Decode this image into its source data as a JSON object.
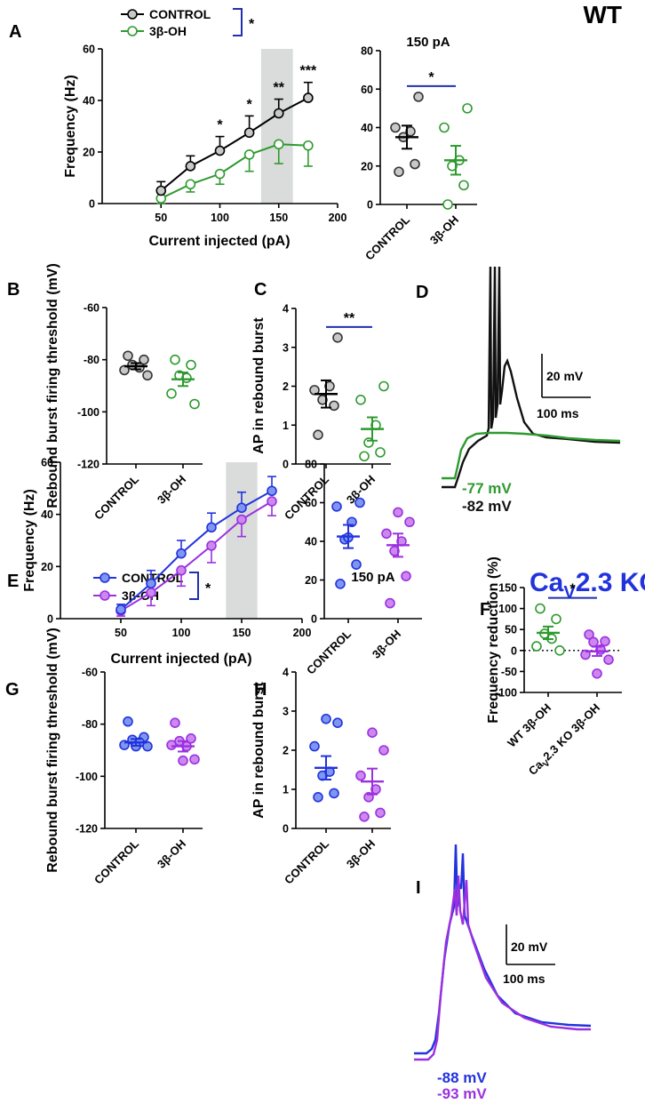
{
  "colors": {
    "wt_control": "#000000",
    "wt_control_fill": "#c8c8c8",
    "wt_treat": "#2e9a2e",
    "ko_control": "#2233dd",
    "ko_control_fill": "#7f96f0",
    "ko_treat": "#9b30e0",
    "ko_treat_fill": "#cc88ee",
    "shade": "#d9dcda",
    "bracket": "#1f2fb0"
  },
  "headers": {
    "wt": "WT",
    "ko_pre": "Ca",
    "ko_sub": "V",
    "ko_post": "2.3 KO"
  },
  "legend_wt": {
    "control": "CONTROL",
    "treat": "3β-OH",
    "sig": "*"
  },
  "legend_ko": {
    "control": "CONTROL",
    "treat": "3β-OH",
    "sig": "*"
  },
  "trace_D": {
    "label": "D",
    "scale_v": "20 mV",
    "scale_t": "100 ms",
    "v_treat": "-77 mV",
    "v_control": "-82 mV"
  },
  "trace_I": {
    "label": "I",
    "scale_v": "20 mV",
    "scale_t": "100 ms",
    "v_control": "-88 mV",
    "v_treat": "-93 mV"
  },
  "chart_data": [
    {
      "id": "A",
      "type": "line",
      "label": "A",
      "xlabel": "Current injected (pA)",
      "ylabel": "Frequency (Hz)",
      "xlim": [
        0,
        200
      ],
      "ylim": [
        0,
        60
      ],
      "xticks": [
        50,
        100,
        150,
        200
      ],
      "yticks": [
        0,
        20,
        40,
        60
      ],
      "highlight": [
        135,
        162
      ],
      "x": [
        50,
        75,
        100,
        125,
        150,
        175
      ],
      "series": [
        {
          "name": "CONTROL",
          "values": [
            5,
            14.5,
            20.5,
            27.5,
            35,
            41
          ],
          "errors": [
            3.5,
            4,
            5.5,
            6.5,
            5.5,
            6
          ]
        },
        {
          "name": "3β-OH",
          "values": [
            2,
            7.5,
            11.5,
            19,
            23,
            22.5
          ],
          "errors": [
            2,
            3,
            4,
            6.5,
            7.5,
            8
          ]
        }
      ],
      "significance": [
        "",
        "",
        "*",
        "*",
        "**",
        "***"
      ]
    },
    {
      "id": "A2",
      "type": "scatter",
      "title": "150 pA",
      "categories": [
        "CONTROL",
        "3β-OH"
      ],
      "ylim": [
        0,
        80
      ],
      "yticks": [
        0,
        20,
        40,
        60,
        80
      ],
      "groups": [
        {
          "name": "CONTROL",
          "points": [
            17,
            21,
            35,
            38,
            40,
            56
          ],
          "mean": 35,
          "sem": 6
        },
        {
          "name": "3β-OH",
          "points": [
            0,
            10,
            20,
            23,
            40,
            50
          ],
          "mean": 23,
          "sem": 7.5
        }
      ],
      "sig": "*"
    },
    {
      "id": "B",
      "type": "scatter",
      "label": "B",
      "ylabel": "Rebound burst firing threshold (mV)",
      "categories": [
        "CONTROL",
        "3β-OH"
      ],
      "ylim": [
        -120,
        -60
      ],
      "yticks": [
        -120,
        -100,
        -80,
        -60
      ],
      "groups": [
        {
          "name": "CONTROL",
          "points": [
            -78.5,
            -80,
            -82,
            -83,
            -84,
            -86
          ],
          "mean": -82.5,
          "sem": 1.2
        },
        {
          "name": "3β-OH",
          "points": [
            -80,
            -82,
            -86,
            -87,
            -93,
            -97
          ],
          "mean": -87.5,
          "sem": 2.6
        }
      ]
    },
    {
      "id": "C",
      "type": "scatter",
      "label": "C",
      "ylabel": "AP in rebound burst",
      "categories": [
        "CONTROL",
        "3β-OH"
      ],
      "ylim": [
        0,
        4
      ],
      "yticks": [
        0,
        1,
        2,
        3,
        4
      ],
      "groups": [
        {
          "name": "CONTROL",
          "points": [
            0.75,
            1.5,
            1.65,
            2,
            1.9,
            3.25
          ],
          "mean": 1.8,
          "sem": 0.35
        },
        {
          "name": "3β-OH",
          "points": [
            0.2,
            0.3,
            0.55,
            1,
            1.65,
            2
          ],
          "mean": 0.9,
          "sem": 0.3
        }
      ],
      "sig": "**"
    },
    {
      "id": "E",
      "type": "line",
      "label": "E",
      "xlabel": "Current injected (pA)",
      "ylabel": "Frequency (Hz)",
      "xlim": [
        0,
        200
      ],
      "ylim": [
        0,
        60
      ],
      "xticks": [
        50,
        100,
        150,
        200
      ],
      "yticks": [
        0,
        20,
        40,
        60
      ],
      "highlight": [
        137,
        163
      ],
      "x": [
        50,
        75,
        100,
        125,
        150,
        175
      ],
      "series": [
        {
          "name": "CONTROL",
          "values": [
            3.5,
            13.5,
            25,
            35,
            42.5,
            49
          ],
          "errors": [
            2,
            5,
            5,
            5.5,
            6,
            5.5
          ]
        },
        {
          "name": "3β-OH",
          "values": [
            3,
            10,
            18.5,
            28,
            38,
            45
          ],
          "errors": [
            2,
            5,
            6,
            6.5,
            6.5,
            5.5
          ]
        }
      ],
      "significance": [
        "",
        "",
        "",
        "",
        "",
        ""
      ]
    },
    {
      "id": "E2",
      "type": "scatter",
      "title": "150 pA",
      "categories": [
        "CONTROL",
        "3β-OH"
      ],
      "ylim": [
        0,
        80
      ],
      "yticks": [
        0,
        20,
        40,
        60,
        80
      ],
      "groups": [
        {
          "name": "CONTROL",
          "points": [
            18,
            28,
            41,
            50,
            58,
            60,
            42
          ],
          "mean": 42.5,
          "sem": 6
        },
        {
          "name": "3β-OH",
          "points": [
            8,
            22,
            35,
            40,
            44,
            50,
            55
          ],
          "mean": 38,
          "sem": 6
        }
      ]
    },
    {
      "id": "F",
      "type": "scatter",
      "label": "F",
      "ylabel": "Frequency reduction (%)",
      "categories": [
        "WT 3β-OH",
        "CaV2.3 KO 3β-OH"
      ],
      "ylim": [
        -100,
        150
      ],
      "yticks": [
        -100,
        -50,
        0,
        50,
        100,
        150
      ],
      "zero_line": true,
      "groups": [
        {
          "name": "WT 3β-OH",
          "points": [
            100,
            75,
            40,
            28,
            10,
            0
          ],
          "mean": 42,
          "sem": 15
        },
        {
          "name": "CaV2.3 KO 3β-OH",
          "points": [
            38,
            22,
            20,
            2,
            -10,
            -22,
            -55
          ],
          "mean": -2,
          "sem": 11
        }
      ],
      "sig": "*"
    },
    {
      "id": "G",
      "type": "scatter",
      "label": "G",
      "ylabel": "Rebound burst firing threshold (mV)",
      "categories": [
        "CONTROL",
        "3β-OH"
      ],
      "ylim": [
        -120,
        -60
      ],
      "yticks": [
        -120,
        -100,
        -80,
        -60
      ],
      "groups": [
        {
          "name": "CONTROL",
          "points": [
            -79,
            -85,
            -86,
            -87,
            -88,
            -88.5,
            -88.5
          ],
          "mean": -87,
          "sem": 1.3
        },
        {
          "name": "3β-OH",
          "points": [
            -79.5,
            -85.5,
            -86.5,
            -88.5,
            -88,
            -93.5,
            -94
          ],
          "mean": -88.5,
          "sem": 2
        }
      ]
    },
    {
      "id": "H",
      "type": "scatter",
      "label": "H",
      "ylabel": "AP in rebound burst",
      "categories": [
        "CONTROL",
        "3β-OH"
      ],
      "ylim": [
        0,
        4
      ],
      "yticks": [
        0,
        1,
        2,
        3,
        4
      ],
      "groups": [
        {
          "name": "CONTROL",
          "points": [
            0.8,
            0.9,
            1.35,
            1.45,
            2.1,
            2.7,
            2.8
          ],
          "mean": 1.55,
          "sem": 0.3
        },
        {
          "name": "3β-OH",
          "points": [
            0.3,
            0.4,
            0.8,
            1,
            1.35,
            2,
            2.45
          ],
          "mean": 1.2,
          "sem": 0.33
        }
      ]
    }
  ]
}
